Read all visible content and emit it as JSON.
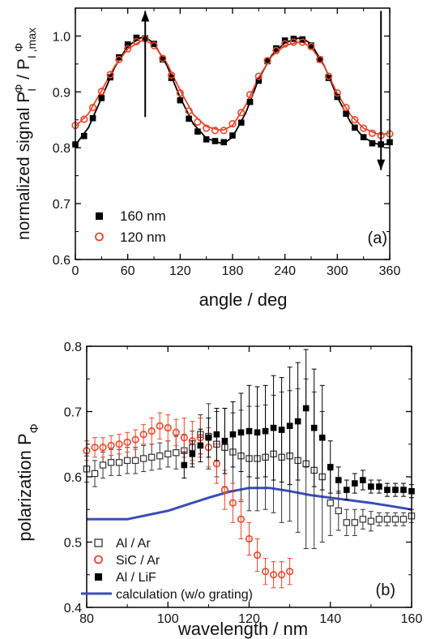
{
  "chart_data": [
    {
      "type": "scatter",
      "panel_label": "(a)",
      "xlabel": "angle / deg",
      "ylabel": "normalized signal P",
      "ylabel_sup": "Φ",
      "ylabel_sub": "I",
      "ylabel_denom": "P",
      "ylabel_denom_sub": "I ,max",
      "xlim": [
        0,
        360
      ],
      "ylim": [
        0.6,
        1.05
      ],
      "xticks": [
        0,
        60,
        120,
        180,
        240,
        300,
        360
      ],
      "xtick_labels": [
        "0",
        "60",
        "120",
        "180",
        "240",
        "300",
        "360"
      ],
      "yticks": [
        0.6,
        0.7,
        0.8,
        0.9,
        1.0
      ],
      "ytick_labels": [
        "0.6",
        "0.7",
        "0.8",
        "0.9",
        "1.0"
      ],
      "grid": false,
      "legend_position": "bottom-left",
      "series": [
        {
          "name": "160 nm",
          "marker": "filled-square",
          "color": "#000000",
          "x": [
            0,
            10,
            20,
            30,
            40,
            50,
            60,
            70,
            80,
            90,
            100,
            110,
            120,
            130,
            140,
            150,
            160,
            170,
            180,
            190,
            200,
            210,
            220,
            230,
            240,
            250,
            260,
            270,
            280,
            290,
            300,
            310,
            320,
            330,
            340,
            350,
            360
          ],
          "y": [
            0.806,
            0.821,
            0.853,
            0.889,
            0.926,
            0.962,
            0.985,
            0.997,
            0.996,
            0.986,
            0.958,
            0.925,
            0.885,
            0.852,
            0.829,
            0.815,
            0.812,
            0.81,
            0.822,
            0.845,
            0.882,
            0.92,
            0.955,
            0.978,
            0.992,
            0.995,
            0.994,
            0.983,
            0.958,
            0.925,
            0.891,
            0.861,
            0.836,
            0.819,
            0.808,
            0.806,
            0.81
          ]
        },
        {
          "name": "120 nm",
          "marker": "open-circle",
          "color": "#e8472a",
          "x": [
            0,
            10,
            20,
            30,
            40,
            50,
            60,
            70,
            80,
            90,
            100,
            110,
            120,
            130,
            140,
            150,
            160,
            170,
            180,
            190,
            200,
            210,
            220,
            230,
            240,
            250,
            260,
            270,
            280,
            290,
            300,
            310,
            320,
            330,
            340,
            350,
            360
          ],
          "y": [
            0.84,
            0.851,
            0.872,
            0.901,
            0.931,
            0.958,
            0.977,
            0.99,
            0.995,
            0.983,
            0.96,
            0.93,
            0.898,
            0.866,
            0.846,
            0.835,
            0.831,
            0.831,
            0.843,
            0.863,
            0.895,
            0.928,
            0.956,
            0.974,
            0.986,
            0.989,
            0.989,
            0.981,
            0.958,
            0.928,
            0.898,
            0.872,
            0.85,
            0.835,
            0.826,
            0.822,
            0.825
          ]
        }
      ],
      "fit_curves": [
        {
          "color": "#000000",
          "x": [
            0,
            15,
            30,
            45,
            60,
            75,
            80,
            90,
            105,
            120,
            135,
            150,
            165,
            170,
            180,
            195,
            210,
            225,
            240,
            255,
            260,
            270,
            285,
            300,
            315,
            330,
            345,
            350,
            360
          ],
          "y": [
            0.805,
            0.836,
            0.889,
            0.944,
            0.982,
            0.997,
            0.998,
            0.987,
            0.947,
            0.89,
            0.843,
            0.817,
            0.809,
            0.808,
            0.819,
            0.862,
            0.923,
            0.966,
            0.988,
            0.996,
            0.996,
            0.986,
            0.947,
            0.891,
            0.846,
            0.818,
            0.807,
            0.806,
            0.807
          ]
        },
        {
          "color": "#e8472a",
          "x": [
            0,
            15,
            30,
            45,
            60,
            75,
            80,
            90,
            105,
            120,
            135,
            150,
            165,
            170,
            180,
            195,
            210,
            225,
            240,
            255,
            260,
            270,
            285,
            300,
            315,
            330,
            345,
            350,
            360
          ],
          "y": [
            0.838,
            0.861,
            0.902,
            0.946,
            0.977,
            0.991,
            0.992,
            0.984,
            0.951,
            0.903,
            0.86,
            0.838,
            0.832,
            0.832,
            0.84,
            0.876,
            0.926,
            0.964,
            0.983,
            0.989,
            0.989,
            0.98,
            0.946,
            0.897,
            0.859,
            0.835,
            0.825,
            0.824,
            0.826
          ]
        }
      ],
      "annotations": [
        {
          "type": "arrow",
          "direction": "up",
          "x": 80,
          "y_from": 0.855,
          "y_to": 1.045
        },
        {
          "type": "arrow",
          "direction": "down",
          "x": 350,
          "y_from": 1.045,
          "y_to": 0.76
        }
      ]
    },
    {
      "type": "scatter",
      "panel_label": "(b)",
      "xlabel": "wavelength / nm",
      "ylabel": "polarization P",
      "ylabel_sub": "Φ",
      "xlim": [
        80,
        160
      ],
      "ylim": [
        0.4,
        0.8
      ],
      "xticks": [
        80,
        100,
        120,
        140,
        160
      ],
      "xtick_labels": [
        "80",
        "100",
        "120",
        "140",
        "160"
      ],
      "yticks": [
        0.4,
        0.5,
        0.6,
        0.7,
        0.8
      ],
      "ytick_labels": [
        "0.4",
        "0.5",
        "0.6",
        "0.7",
        "0.8"
      ],
      "grid": false,
      "legend_position": "bottom-left",
      "series": [
        {
          "name": "Al / Ar",
          "marker": "open-square",
          "color": "#333333",
          "x": [
            80,
            82,
            84,
            86,
            88,
            90,
            92,
            94,
            96,
            98,
            100,
            102,
            104,
            106,
            108,
            110,
            112,
            114,
            116,
            118,
            120,
            122,
            124,
            126,
            128,
            130,
            132,
            134,
            136,
            138,
            140,
            142,
            144,
            146,
            148,
            150,
            152,
            154,
            156,
            158,
            160
          ],
          "y": [
            0.612,
            0.605,
            0.618,
            0.622,
            0.622,
            0.625,
            0.625,
            0.628,
            0.63,
            0.632,
            0.635,
            0.637,
            0.64,
            0.645,
            0.665,
            0.662,
            0.65,
            0.645,
            0.638,
            0.632,
            0.628,
            0.628,
            0.63,
            0.635,
            0.63,
            0.632,
            0.625,
            0.62,
            0.61,
            0.6,
            0.56,
            0.548,
            0.53,
            0.53,
            0.535,
            0.532,
            0.535,
            0.535,
            0.535,
            0.535,
            0.54
          ],
          "err": [
            0.02,
            0.02,
            0.02,
            0.02,
            0.02,
            0.02,
            0.02,
            0.02,
            0.02,
            0.02,
            0.02,
            0.025,
            0.025,
            0.025,
            0.03,
            0.05,
            0.05,
            0.06,
            0.06,
            0.07,
            0.08,
            0.08,
            0.08,
            0.09,
            0.1,
            0.1,
            0.11,
            0.13,
            0.12,
            0.1,
            0.05,
            0.03,
            0.02,
            0.02,
            0.015,
            0.015,
            0.01,
            0.01,
            0.01,
            0.01,
            0.01
          ]
        },
        {
          "name": "SiC / Ar",
          "marker": "open-circle",
          "color": "#e8472a",
          "x": [
            80,
            82,
            84,
            86,
            88,
            90,
            92,
            94,
            96,
            98,
            100,
            102,
            104,
            106,
            108,
            110,
            112,
            114,
            116,
            118,
            120,
            122,
            124,
            126,
            128,
            130
          ],
          "y": [
            0.64,
            0.645,
            0.645,
            0.648,
            0.65,
            0.653,
            0.657,
            0.665,
            0.67,
            0.678,
            0.675,
            0.668,
            0.66,
            0.655,
            0.66,
            0.645,
            0.62,
            0.58,
            0.56,
            0.535,
            0.505,
            0.48,
            0.455,
            0.45,
            0.45,
            0.455
          ],
          "err": [
            0.015,
            0.015,
            0.015,
            0.015,
            0.015,
            0.015,
            0.015,
            0.015,
            0.02,
            0.02,
            0.02,
            0.02,
            0.03,
            0.03,
            0.03,
            0.03,
            0.03,
            0.03,
            0.03,
            0.03,
            0.025,
            0.025,
            0.02,
            0.02,
            0.02,
            0.02
          ]
        },
        {
          "name": "Al / LiF",
          "marker": "filled-square",
          "color": "#000000",
          "x": [
            104,
            106,
            108,
            110,
            112,
            114,
            116,
            118,
            120,
            122,
            124,
            126,
            128,
            130,
            132,
            134,
            136,
            138,
            140,
            142,
            144,
            146,
            148,
            150,
            152,
            154,
            156,
            158,
            160
          ],
          "y": [
            0.618,
            0.635,
            0.648,
            0.66,
            0.665,
            0.655,
            0.665,
            0.668,
            0.67,
            0.668,
            0.67,
            0.675,
            0.672,
            0.678,
            0.685,
            0.705,
            0.675,
            0.66,
            0.615,
            0.595,
            0.58,
            0.59,
            0.595,
            0.585,
            0.585,
            0.58,
            0.58,
            0.58,
            0.578
          ],
          "err": [
            0.02,
            0.02,
            0.025,
            0.03,
            0.04,
            0.05,
            0.05,
            0.06,
            0.07,
            0.07,
            0.07,
            0.08,
            0.08,
            0.09,
            0.09,
            0.09,
            0.09,
            0.08,
            0.04,
            0.02,
            0.015,
            0.015,
            0.015,
            0.01,
            0.01,
            0.01,
            0.01,
            0.01,
            0.01
          ]
        }
      ],
      "line_series": [
        {
          "name": "calculation (w/o grating)",
          "color": "#3b4db8",
          "x": [
            80,
            90,
            100,
            105,
            110,
            115,
            120,
            125,
            130,
            135,
            140,
            145,
            150,
            155,
            160
          ],
          "y": [
            0.535,
            0.535,
            0.548,
            0.558,
            0.568,
            0.577,
            0.583,
            0.583,
            0.578,
            0.572,
            0.568,
            0.564,
            0.56,
            0.555,
            0.55
          ]
        }
      ]
    }
  ]
}
